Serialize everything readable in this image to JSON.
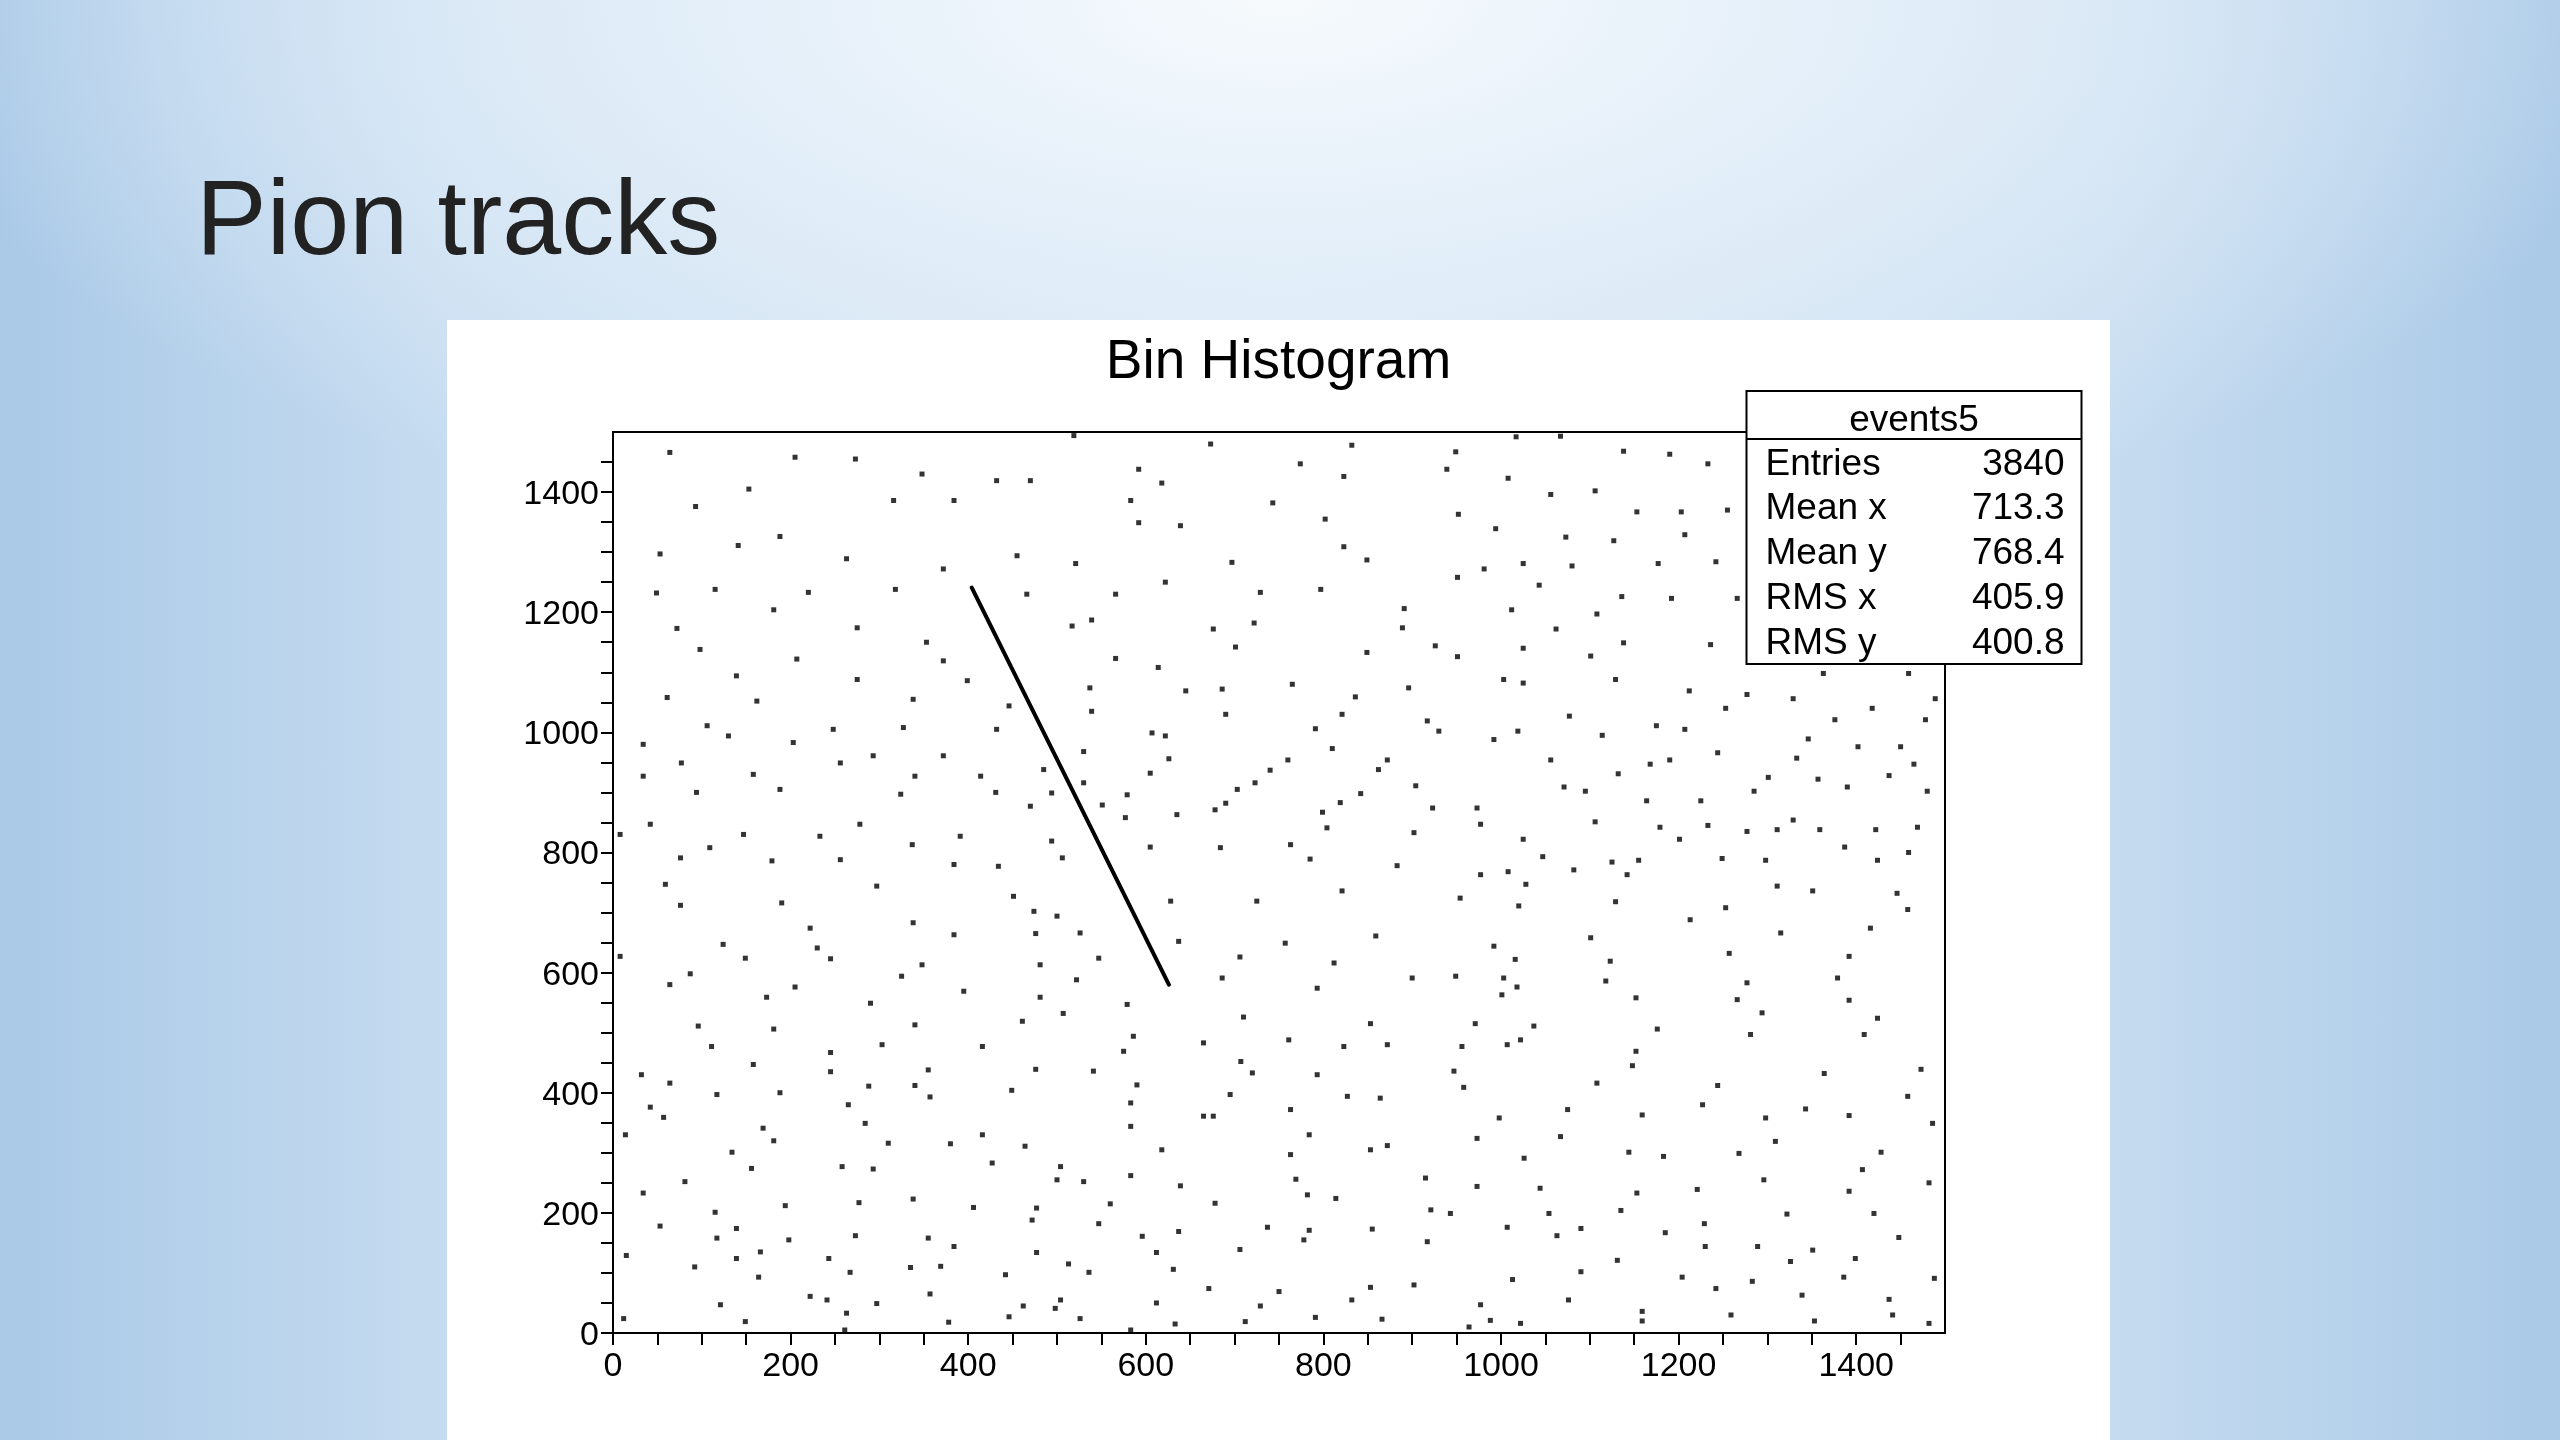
{
  "chart_data": {
    "type": "scatter",
    "title": "Pion tracks",
    "subtitle": "Bin Histogram",
    "annotations": [
      "events5",
      "Entries",
      "3840",
      "Mean x",
      "713.3",
      "Mean y",
      "768.4",
      "RMS x",
      "405.9",
      "RMS y",
      "400.8"
    ],
    "xlim": [
      0,
      1500
    ],
    "ylim": [
      0,
      1500
    ],
    "xticks": [
      0,
      {
        "value": 50,
        "label": null
      },
      {
        "value": 100,
        "label": null
      },
      {
        "value": 150,
        "label": null
      },
      200,
      {
        "value": 250,
        "label": null
      },
      {
        "value": 300,
        "label": null
      },
      {
        "value": 350,
        "label": null
      },
      400,
      {
        "value": 450,
        "label": null
      },
      {
        "value": 500,
        "label": null
      },
      {
        "value": 550,
        "label": null
      },
      600,
      {
        "value": 650,
        "label": null
      },
      {
        "value": 700,
        "label": null
      },
      {
        "value": 750,
        "label": null
      },
      800,
      {
        "value": 850,
        "label": null
      },
      {
        "value": 900,
        "label": null
      },
      {
        "value": 950,
        "label": null
      },
      1000,
      {
        "value": 1050,
        "label": null
      },
      {
        "value": 1100,
        "label": null
      },
      {
        "value": 1150,
        "label": null
      },
      1200,
      {
        "value": 1250,
        "label": null
      },
      {
        "value": 1300,
        "label": null
      },
      {
        "value": 1350,
        "label": null
      },
      1400,
      {
        "value": 1450,
        "label": null
      }
    ],
    "yticks": [
      0,
      {
        "value": 50,
        "label": null
      },
      {
        "value": 100,
        "label": null
      },
      {
        "value": 150,
        "label": null
      },
      200,
      {
        "value": 250,
        "label": null
      },
      {
        "value": 300,
        "label": null
      },
      {
        "value": 350,
        "label": null
      },
      400,
      {
        "value": 450,
        "label": null
      },
      {
        "value": 500,
        "label": null
      },
      {
        "value": 550,
        "label": null
      },
      600,
      {
        "value": 650,
        "label": null
      },
      {
        "value": 700,
        "label": null
      },
      {
        "value": 750,
        "label": null
      },
      800,
      {
        "value": 850,
        "label": null
      },
      {
        "value": 900,
        "label": null
      },
      {
        "value": 950,
        "label": null
      },
      1000,
      {
        "value": 1050,
        "label": null
      },
      {
        "value": 1100,
        "label": null
      },
      {
        "value": 1150,
        "label": null
      },
      1200,
      {
        "value": 1250,
        "label": null
      },
      {
        "value": 1300,
        "label": null
      },
      {
        "value": 1350,
        "label": null
      },
      1400,
      {
        "value": 1450,
        "label": null
      }
    ],
    "marker": "square",
    "series": [
      {
        "color": "#000000",
        "x": [
          64,
          153,
          205,
          273,
          348,
          432,
          470,
          93,
          188,
          316,
          384,
          455,
          53,
          141,
          263,
          372,
          49,
          115,
          220,
          318,
          466,
          72,
          181,
          275,
          353,
          98,
          207,
          372,
          399,
          139,
          275,
          61,
          162,
          338,
          446,
          106,
          248,
          327,
          432,
          34,
          130,
          203,
          293,
          372,
          485,
          77,
          158,
          256,
          340,
          414,
          34,
          94,
          188,
          324,
          431,
          494,
          42,
          147,
          278,
          391,
          470,
          8,
          109,
          233,
          337,
          494,
          76,
          179,
          256,
          384,
          434,
          519,
          673,
          832,
          949,
          592,
          774,
          939,
          618,
          823,
          583,
          743,
          952,
          592,
          802,
          994,
          639,
          823,
          521,
          697,
          849,
          981,
          622,
          797,
          951,
          566,
          729,
          891,
          539,
          722,
          889,
          517,
          676,
          926,
          566,
          701,
          849,
          951,
          614,
          765,
          896,
          537,
          686,
          1003,
          645,
          836,
          539,
          690,
          821,
          917,
          607,
          791,
          930,
          530,
          622,
          810,
          992,
          626,
          760,
          872,
          605,
          740,
          862,
          530,
          723,
          904,
          579,
          703,
          842,
          551,
          678,
          819,
          973,
          635,
          799,
          923,
          577,
          690,
          804,
          977,
          605,
          763,
          902,
          506,
          684,
          785,
          883,
          977,
          1017,
          1067,
          1138,
          1190,
          1233,
          1008,
          1056,
          1106,
          1153,
          1203,
          1255,
          1073,
          1127,
          1207,
          1025,
          1080,
          1177,
          1242,
          1043,
          1136,
          1192,
          1266,
          1012,
          1108,
          1062,
          1138,
          1236,
          1025,
          1101,
          1025,
          1129,
          1212,
          1277,
          1329,
          1363,
          1459,
          1489,
          1077,
          1175,
          1253,
          1376,
          1418,
          1478,
          1019,
          1114,
          1207,
          1346,
          1402,
          1450,
          1056,
          1168,
          1244,
          1333,
          1465,
          1071,
          1132,
          1190,
          1301,
          1357,
          1437,
          1480,
          1095,
          1164,
          1225,
          1285,
          1390,
          1469,
          1025,
          1106,
          1179,
          1233,
          1311,
          1359,
          1422,
          1047,
          1125,
          1201,
          1277,
          1329,
          1387,
          1459,
          1008,
          1082,
          1155,
          1249,
          1298,
          1424,
          59,
          190,
          297,
          451,
          76,
          222,
          338,
          474,
          124,
          230,
          384,
          8,
          149,
          245,
          348,
          476,
          87,
          205,
          325,
          481,
          64,
          173,
          290,
          395,
          481,
          96,
          181,
          340,
          461,
          111,
          245,
          303,
          416,
          32,
          158,
          245,
          355,
          476,
          64,
          188,
          288,
          340,
          449,
          42,
          117,
          265,
          357,
          57,
          169,
          284,
          380,
          14,
          181,
          310,
          416,
          134,
          293,
          464,
          81,
          156,
          258,
          427,
          34,
          115,
          194,
          277,
          338,
          406,
          477,
          53,
          139,
          198,
          273,
          355,
          472,
          117,
          166,
          243,
          384,
          15,
          139,
          267,
          369,
          477,
          92,
          164,
          241,
          335,
          442,
          121,
          222,
          297,
          357,
          462,
          12,
          149,
          263,
          378,
          446,
          261,
          498,
          500,
          628,
          725,
          821,
          954,
          526,
          637,
          757,
          859,
          992,
          547,
          706,
          812,
          949,
          522,
          686,
          793,
          900,
          507,
          579,
          710,
          853,
          1001,
          586,
          665,
          761,
          872,
          971,
          575,
          707,
          823,
          956,
          541,
          720,
          793,
          947,
          590,
          695,
          827,
          958,
          583,
          676,
          763,
          864,
          998,
          583,
          665,
          784,
          872,
          504,
          618,
          763,
          853,
          973,
          500,
          583,
          769,
          915,
          530,
          639,
          782,
          973,
          560,
          678,
          814,
          921,
          547,
          596,
          737,
          855,
          943,
          637,
          612,
          706,
          784,
          917,
          513,
          631,
          778,
          902,
          536,
          671,
          750,
          853,
          504,
          612,
          729,
          832,
          977,
          526,
          633,
          712,
          791,
          866,
          988,
          583,
          964,
          1028,
          1142,
          1311,
          1446,
          1020,
          1129,
          1253,
          1351,
          1458,
          1101,
          1213,
          1315,
          1416,
          1016,
          1123,
          1257,
          1392,
          1003,
          1118,
          1277,
          1379,
          1018,
          1152,
          1266,
          1392,
          1037,
          1176,
          1294,
          1424,
          1022,
          1152,
          1281,
          1409,
          1007,
          1148,
          1244,
          1364,
          1473,
          1108,
          1227,
          1343,
          1458,
          1075,
          1159,
          1298,
          1392,
          1486,
          1067,
          1183,
          1309,
          1428,
          1026,
          1144,
          1268,
          1407,
          1044,
          1153,
          1221,
          1296,
          1392,
          1482,
          1054,
          1135,
          1229,
          1322,
          1420,
          1007,
          1090,
          1185,
          1289,
          1351,
          1448,
          1063,
          1131,
          1230,
          1326,
          1399,
          1013,
          1090,
          1204,
          1283,
          1386,
          1488,
          1076,
          1159,
          1242,
          1339,
          1437,
          1022,
          1159,
          1259,
          1353,
          1441,
          1482
        ],
        "values": [
          1466,
          1405,
          1458,
          1455,
          1430,
          1419,
          1419,
          1376,
          1326,
          1386,
          1386,
          1294,
          1297,
          1311,
          1289,
          1272,
          1232,
          1238,
          1233,
          1238,
          1230,
          1173,
          1204,
          1174,
          1150,
          1138,
          1122,
          1119,
          1086,
          1094,
          1088,
          1058,
          1052,
          1055,
          1044,
          1011,
          1005,
          1008,
          1005,
          980,
          994,
          983,
          961,
          961,
          938,
          949,
          930,
          949,
          927,
          927,
          927,
          900,
          905,
          897,
          900,
          899,
          847,
          830,
          847,
          827,
          877,
          830,
          808,
          827,
          813,
          819,
          791,
          786,
          788,
          780,
          777,
          1494,
          1480,
          1478,
          1467,
          1438,
          1447,
          1438,
          1415,
          1426,
          1386,
          1382,
          1363,
          1349,
          1355,
          1339,
          1344,
          1309,
          1281,
          1283,
          1287,
          1272,
          1250,
          1238,
          1258,
          1230,
          1233,
          1206,
          1187,
          1182,
          1174,
          1177,
          1172,
          1144,
          1123,
          1142,
          1133,
          1126,
          1108,
          1080,
          1074,
          1074,
          1072,
          1088,
          1069,
          1059,
          1035,
          1030,
          1030,
          1019,
          999,
          1006,
          1002,
          968,
          994,
          973,
          988,
          956,
          954,
          954,
          932,
          937,
          938,
          916,
          916,
          911,
          896,
          905,
          898,
          879,
          871,
          883,
          874,
          863,
          867,
          874,
          858,
          882,
          841,
          847,
          809,
          813,
          833,
          791,
          808,
          789,
          778,
          763,
          1492,
          1493,
          1468,
          1463,
          1447,
          1423,
          1396,
          1402,
          1367,
          1367,
          1370,
          1325,
          1319,
          1329,
          1281,
          1277,
          1281,
          1284,
          1245,
          1226,
          1223,
          1223,
          1204,
          1197,
          1172,
          1149,
          1146,
          1140,
          1127,
          1082,
          1088,
          1069,
          1063,
          1056,
          1098,
          1098,
          1056,
          1027,
          1011,
          1040,
          1021,
          1040,
          1021,
          1002,
          995,
          1005,
          989,
          976,
          976,
          954,
          947,
          966,
          957,
          947,
          909,
          931,
          954,
          925,
          922,
          928,
          902,
          902,
          886,
          886,
          902,
          909,
          842,
          822,
          851,
          842,
          845,
          838,
          838,
          838,
          793,
          784,
          822,
          835,
          854,
          809,
          800,
          768,
          771,
          787,
          790,
          787,
          787,
          747,
          716,
          744,
          727,
          712,
          674,
          683,
          702,
          647,
          641,
          663,
          627,
          624,
          623,
          613,
          665,
          598,
          576,
          594,
          613,
          580,
          559,
          549,
          569,
          559,
          511,
          506,
          513,
          519,
          477,
          467,
          480,
          477,
          430,
          447,
          435,
          438,
          439,
          416,
          400,
          411,
          412,
          404,
          376,
          397,
          380,
          393,
          359,
          341,
          349,
          315,
          330,
          320,
          316,
          330,
          301,
          273,
          311,
          252,
          274,
          277,
          283,
          233,
          201,
          212,
          217,
          223,
          209,
          208,
          178,
          174,
          155,
          162,
          158,
          188,
          158,
          135,
          124,
          144,
          129,
          124,
          101,
          111,
          134,
          110,
          93,
          55,
          109,
          97,
          47,
          61,
          49,
          65,
          45,
          24,
          19,
          33,
          18,
          27,
          5,
          41,
          694,
          719,
          719,
          736,
          724,
          666,
          652,
          649,
          661,
          644,
          624,
          626,
          616,
          594,
          588,
          591,
          574,
          591,
          532,
          547,
          526,
          515,
          563,
          494,
          483,
          488,
          480,
          515,
          469,
          452,
          477,
          477,
          436,
          433,
          430,
          436,
          413,
          397,
          394,
          409,
          383,
          361,
          372,
          391,
          358,
          344,
          361,
          330,
          312,
          277,
          305,
          297,
          305,
          324,
          255,
          262,
          256,
          258,
          252,
          245,
          230,
          244,
          215,
          216,
          224,
          205,
          182,
          161,
          176,
          173,
          199,
          169,
          134,
          139,
          171,
          152,
          115,
          106,
          155,
          80,
          101,
          74,
          69,
          76,
          55,
          50,
          45,
          55,
          47,
          24,
          15,
          19,
          26,
          23,
          21,
          5,
          10,
          747,
          763,
          744,
          732,
          711,
          718,
          708,
          736,
          705,
          658,
          688,
          666,
          674,
          622,
          619,
          632,
          627,
          591,
          586,
          583,
          591,
          576,
          558,
          555,
          554,
          511,
          506,
          533,
          524,
          488,
          469,
          497,
          497,
          480,
          445,
          412,
          432,
          439,
          416,
          380,
          373,
          394,
          372,
          363,
          358,
          362,
          349,
          327,
          294,
          319,
          301,
          291,
          301,
          299,
          272,
          241,
          233,
          239,
          255,
          236,
          250,
          199,
          204,
          182,
          198,
          199,
          176,
          174,
          167,
          144,
          138,
          159,
          162,
          121,
          144,
          119,
          124,
          89,
          102,
          93,
          86,
          93,
          91,
          55,
          36,
          74,
          63,
          56,
          16,
          20,
          30,
          20,
          30,
          16
        ]
      },
      {
        "type": "line",
        "color": "#000000",
        "x": [
          404,
          626
        ],
        "values": [
          1241,
          580
        ],
        "marker": "none",
        "line_style": "solid"
      }
    ]
  }
}
